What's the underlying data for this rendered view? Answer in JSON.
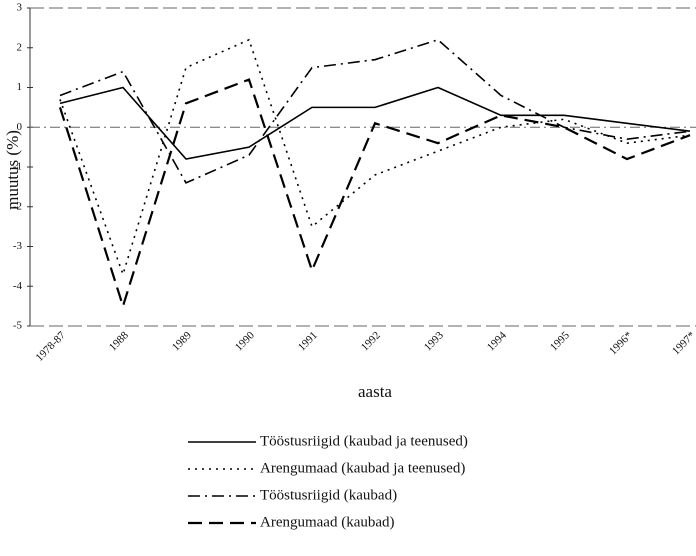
{
  "chart_data": {
    "type": "line",
    "ylabel": "muutus (%)",
    "xlabel": "aasta",
    "categories": [
      "1978-87",
      "1988",
      "1989",
      "1990",
      "1991",
      "1992",
      "1993",
      "1994",
      "1995",
      "1996*",
      "1997*"
    ],
    "series": [
      {
        "name": "Tööstusriigid (kaubad ja teenused)",
        "color": "#000000",
        "style": "solid",
        "values": [
          0.6,
          1.0,
          -0.8,
          -0.5,
          0.5,
          0.5,
          1.0,
          0.3,
          0.3,
          0.1,
          -0.1
        ]
      },
      {
        "name": "Arengumaad (kaubad ja teenused)",
        "color": "#000000",
        "style": "dotted",
        "values": [
          0.7,
          -3.7,
          1.5,
          2.2,
          -2.5,
          -1.2,
          -0.6,
          0.0,
          0.2,
          -0.4,
          -0.2
        ]
      },
      {
        "name": "Tööstusriigid (kaubad)",
        "color": "#000000",
        "style": "dashdot",
        "values": [
          0.8,
          1.4,
          -1.4,
          -0.7,
          1.5,
          1.7,
          2.2,
          0.8,
          0.0,
          -0.3,
          -0.1
        ]
      },
      {
        "name": "Arengumaad (kaubad)",
        "color": "#000000",
        "style": "dashed",
        "values": [
          0.5,
          -4.5,
          0.6,
          1.2,
          -3.6,
          0.1,
          -0.4,
          0.3,
          0.0,
          -0.8,
          -0.2
        ]
      }
    ],
    "ylim": [
      -5,
      3
    ],
    "yticks": [
      -5,
      -4,
      -3,
      -2,
      -1,
      0,
      1,
      2,
      3
    ]
  }
}
